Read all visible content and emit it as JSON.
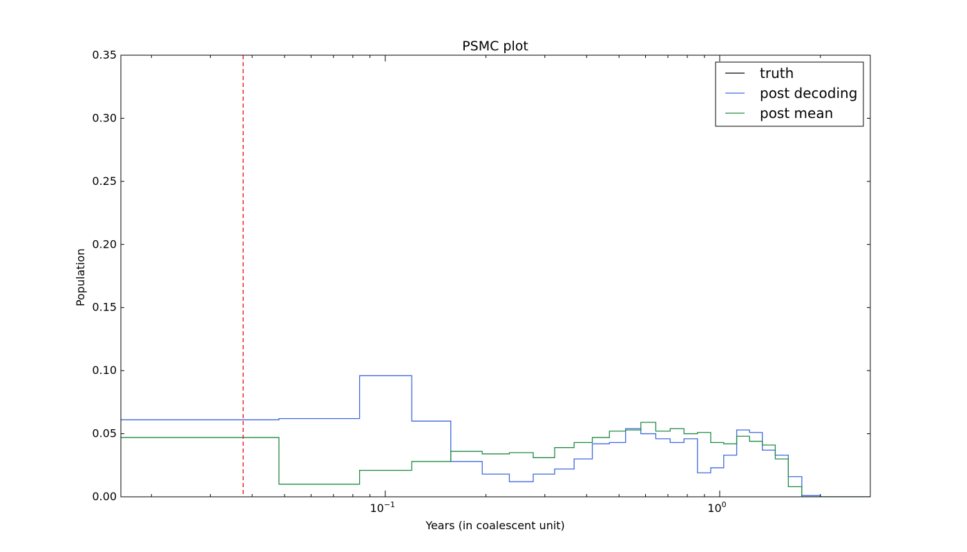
{
  "chart_data": {
    "type": "line",
    "title": "PSMC plot",
    "xlabel": "Years (in coalescent unit)",
    "ylabel": "Population",
    "xscale": "log",
    "xlim": [
      0.0162,
      2.82
    ],
    "ylim": [
      0,
      0.35
    ],
    "xticks": [
      {
        "value": 0.1,
        "base": "10",
        "exp": "−1"
      },
      {
        "value": 1,
        "base": "10",
        "exp": "0"
      }
    ],
    "yticks": [
      "0.00",
      "0.05",
      "0.10",
      "0.15",
      "0.20",
      "0.25",
      "0.30",
      "0.35"
    ],
    "grid": false,
    "legend_position": "top-right",
    "vline": {
      "x": 0.0376,
      "color": "#e8141c",
      "style": "dashed"
    },
    "series": [
      {
        "name": "truth",
        "color": "#000000",
        "step": "post",
        "x": [],
        "y": []
      },
      {
        "name": "post decoding",
        "color": "#3c67e0",
        "step": "post",
        "x": [
          0.0162,
          0.0481,
          0.0838,
          0.12,
          0.157,
          0.195,
          0.235,
          0.277,
          0.321,
          0.367,
          0.416,
          0.468,
          0.523,
          0.581,
          0.644,
          0.711,
          0.782,
          0.858,
          0.94,
          1.028,
          1.124,
          1.228,
          1.341,
          1.466,
          1.604,
          1.76,
          2.0,
          2.82
        ],
        "y": [
          0.061,
          0.062,
          0.096,
          0.06,
          0.028,
          0.018,
          0.012,
          0.018,
          0.022,
          0.03,
          0.042,
          0.043,
          0.054,
          0.05,
          0.046,
          0.043,
          0.046,
          0.019,
          0.023,
          0.033,
          0.053,
          0.051,
          0.037,
          0.033,
          0.016,
          0.001,
          0.0,
          0.0
        ]
      },
      {
        "name": "post mean",
        "color": "#1e8a42",
        "step": "post",
        "x": [
          0.0162,
          0.0481,
          0.0838,
          0.12,
          0.157,
          0.195,
          0.235,
          0.277,
          0.321,
          0.367,
          0.416,
          0.468,
          0.523,
          0.581,
          0.644,
          0.711,
          0.782,
          0.858,
          0.94,
          1.028,
          1.124,
          1.228,
          1.341,
          1.466,
          1.604,
          1.76,
          2.0,
          2.82
        ],
        "y": [
          0.047,
          0.01,
          0.021,
          0.028,
          0.036,
          0.034,
          0.035,
          0.031,
          0.039,
          0.043,
          0.047,
          0.052,
          0.053,
          0.059,
          0.052,
          0.054,
          0.05,
          0.051,
          0.043,
          0.042,
          0.048,
          0.044,
          0.041,
          0.03,
          0.008,
          0.0,
          0.0,
          0.0
        ]
      }
    ]
  }
}
